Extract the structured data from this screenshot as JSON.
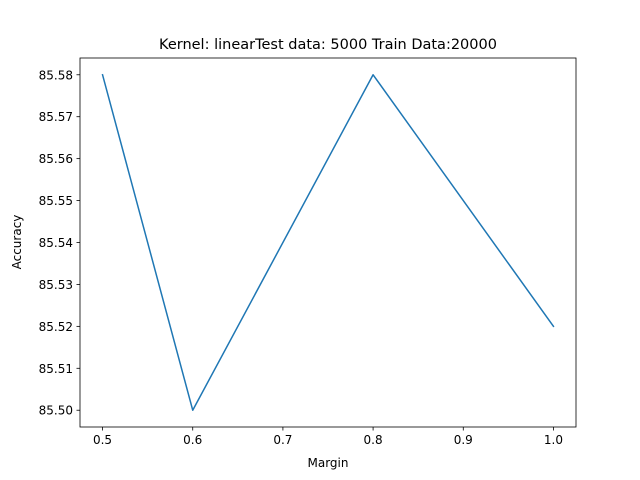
{
  "chart_data": {
    "type": "line",
    "title": "Kernel: linearTest data: 5000  Train Data:20000",
    "xlabel": "Margin",
    "ylabel": "Accuracy",
    "x": [
      0.5,
      0.6,
      0.8,
      1.0
    ],
    "series": [
      {
        "values": [
          85.58,
          85.5,
          85.58,
          85.52
        ],
        "color": "#1f77b4"
      }
    ],
    "xlim": [
      0.475,
      1.025
    ],
    "ylim": [
      85.496,
      85.584
    ],
    "xticks": [
      0.5,
      0.6,
      0.7,
      0.8,
      0.9,
      1.0
    ],
    "xtick_labels": [
      "0.5",
      "0.6",
      "0.7",
      "0.8",
      "0.9",
      "1.0"
    ],
    "yticks": [
      85.5,
      85.51,
      85.52,
      85.53,
      85.54,
      85.55,
      85.56,
      85.57,
      85.58
    ],
    "ytick_labels": [
      "85.50",
      "85.51",
      "85.52",
      "85.53",
      "85.54",
      "85.55",
      "85.56",
      "85.57",
      "85.58"
    ],
    "grid": false,
    "legend": "none"
  }
}
